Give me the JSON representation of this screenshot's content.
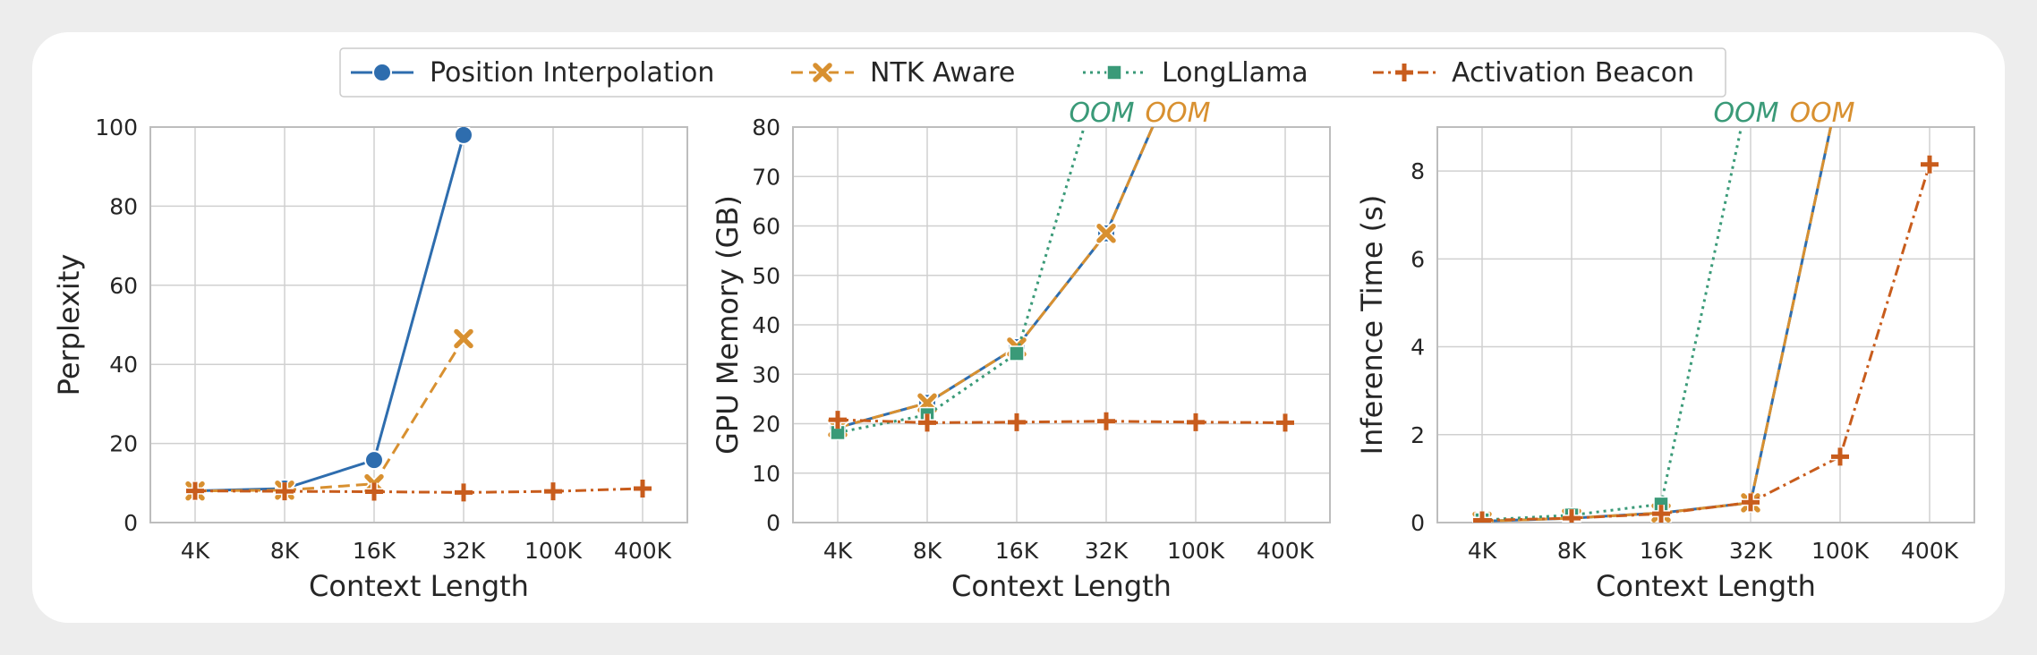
{
  "legend": {
    "placement": "top-center",
    "items": [
      {
        "key": "pi",
        "label": "Position Interpolation"
      },
      {
        "key": "ntk",
        "label": "NTK Aware"
      },
      {
        "key": "ll",
        "label": "LongLlama"
      },
      {
        "key": "ab",
        "label": "Activation Beacon"
      }
    ]
  },
  "styles": {
    "pi": {
      "color": "#2e6dae",
      "dash": "solid",
      "marker": "circle"
    },
    "ntk": {
      "color": "#d89030",
      "dash": "dashed",
      "marker": "x"
    },
    "ll": {
      "color": "#3a9a78",
      "dash": "dotted",
      "marker": "square"
    },
    "ab": {
      "color": "#c85c1c",
      "dash": "dashdot",
      "marker": "plus"
    }
  },
  "oom_label": "OOM",
  "chart_data": [
    {
      "type": "line",
      "categories": [
        "4K",
        "8K",
        "16K",
        "32K",
        "100K",
        "400K"
      ],
      "xlabel": "Context Length",
      "ylabel": "Perplexity",
      "ylim": [
        0,
        100
      ],
      "yticks": [
        0,
        20,
        40,
        60,
        80,
        100
      ],
      "grid": true,
      "series": [
        {
          "key": "pi",
          "name": "Position Interpolation",
          "values": [
            8.0,
            8.6,
            15.8,
            98.0,
            null,
            null
          ]
        },
        {
          "key": "ntk",
          "name": "NTK Aware",
          "values": [
            8.0,
            8.2,
            9.8,
            46.5,
            null,
            null
          ]
        },
        {
          "key": "ab",
          "name": "Activation Beacon",
          "values": [
            8.0,
            7.9,
            7.8,
            7.6,
            7.9,
            8.6
          ]
        }
      ],
      "annotations": []
    },
    {
      "type": "line",
      "categories": [
        "4K",
        "8K",
        "16K",
        "32K",
        "100K",
        "400K"
      ],
      "xlabel": "Context Length",
      "ylabel": "GPU Memory (GB)",
      "ylim": [
        0,
        80
      ],
      "yticks": [
        0,
        10,
        20,
        30,
        40,
        50,
        60,
        70,
        80
      ],
      "grid": true,
      "series": [
        {
          "key": "pi",
          "name": "Position Interpolation",
          "values": [
            19.2,
            24.2,
            35.5,
            58.5,
            100,
            null
          ]
        },
        {
          "key": "ntk",
          "name": "NTK Aware",
          "values": [
            19.2,
            24.2,
            35.5,
            58.5,
            100,
            null
          ]
        },
        {
          "key": "ll",
          "name": "LongLlama",
          "values": [
            18.2,
            21.8,
            34.2,
            95,
            null,
            null
          ]
        },
        {
          "key": "ab",
          "name": "Activation Beacon",
          "values": [
            20.8,
            20.2,
            20.3,
            20.5,
            20.3,
            20.2
          ]
        }
      ],
      "annotations": [
        {
          "text": "OOM",
          "series": "ll",
          "x_index": 2.95
        },
        {
          "text": "OOM",
          "series": "ntk",
          "x_index": 3.8
        }
      ]
    },
    {
      "type": "line",
      "categories": [
        "4K",
        "8K",
        "16K",
        "32K",
        "100K",
        "400K"
      ],
      "xlabel": "Context Length",
      "ylabel": "Inference Time (s)",
      "ylim": [
        0,
        9
      ],
      "yticks": [
        0,
        2,
        4,
        6,
        8
      ],
      "grid": true,
      "series": [
        {
          "key": "pi",
          "name": "Position Interpolation",
          "values": [
            0.03,
            0.1,
            0.22,
            0.45,
            10,
            null
          ]
        },
        {
          "key": "ntk",
          "name": "NTK Aware",
          "values": [
            0.03,
            0.1,
            0.22,
            0.45,
            10,
            null
          ]
        },
        {
          "key": "ll",
          "name": "LongLlama",
          "values": [
            0.06,
            0.17,
            0.42,
            10,
            null,
            null
          ]
        },
        {
          "key": "ab",
          "name": "Activation Beacon",
          "values": [
            0.05,
            0.1,
            0.2,
            0.46,
            1.5,
            8.15
          ]
        }
      ],
      "annotations": [
        {
          "text": "OOM",
          "series": "ll",
          "x_index": 2.95
        },
        {
          "text": "OOM",
          "series": "ntk",
          "x_index": 3.8
        }
      ]
    }
  ]
}
